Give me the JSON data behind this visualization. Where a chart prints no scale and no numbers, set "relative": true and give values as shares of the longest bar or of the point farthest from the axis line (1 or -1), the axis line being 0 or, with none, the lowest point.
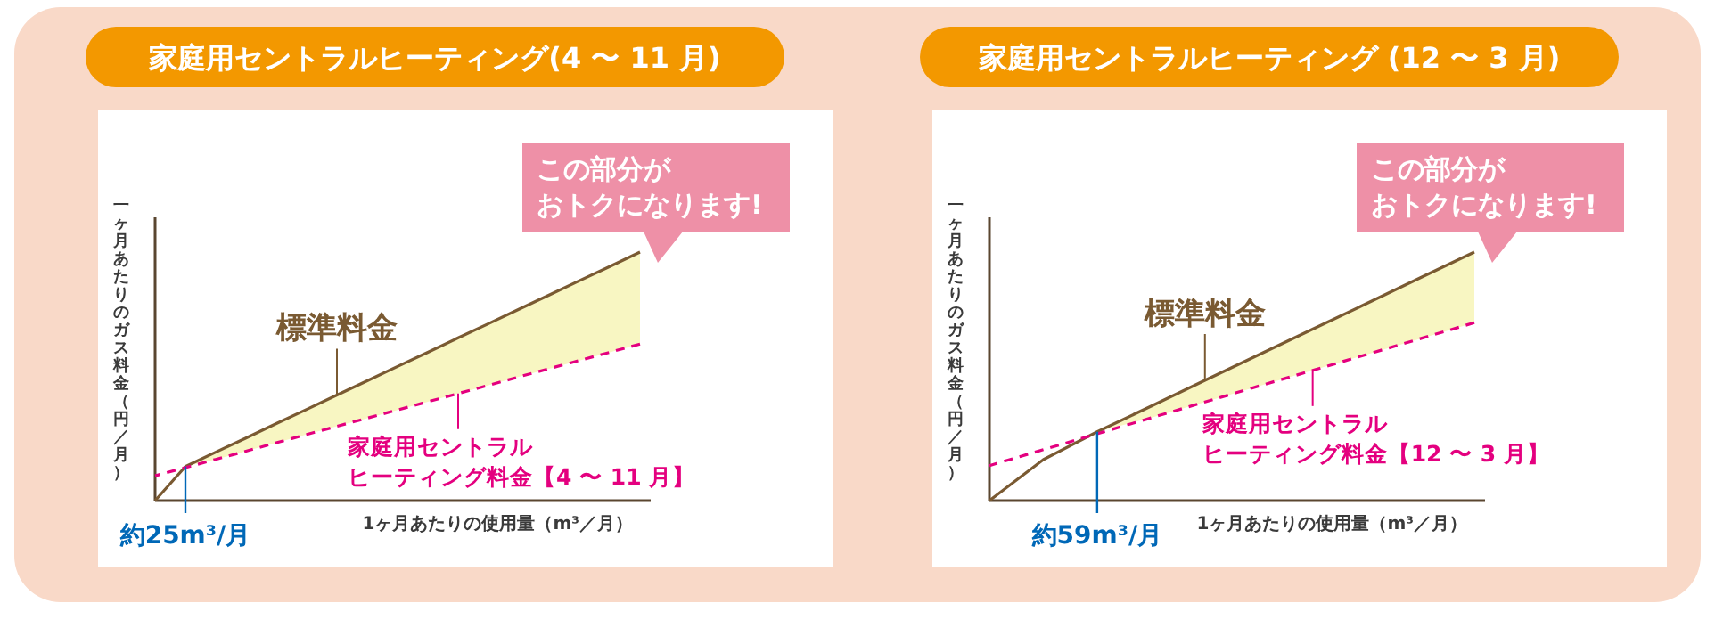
{
  "chart_data": [
    {
      "type": "line",
      "title": "家庭用セントラルヒーティング(4 〜 11 月)",
      "xlabel": "1ヶ月あたりの使用量（m³／月）",
      "ylabel": "一ヶ月あたりのガス料金（円／月）",
      "relative": true,
      "categories": [
        null,
        null,
        null,
        null,
        null,
        null,
        null,
        null,
        null,
        null,
        null,
        null,
        null,
        null,
        null,
        null,
        null
      ],
      "series": [
        {
          "name": "標準料金",
          "color": "#7a5a32",
          "values": [
            0,
            0.137,
            0.195,
            0.252,
            0.31,
            0.367,
            0.425,
            0.482,
            0.54,
            0.597,
            0.655,
            0.712,
            0.77,
            0.827,
            0.885,
            0.942,
            1
          ],
          "lower": [
            null,
            0.137,
            0.166,
            0.199,
            0.233,
            0.266,
            0.299,
            0.332,
            0.365,
            0.398,
            0.431,
            0.464,
            0.498,
            0.531,
            0.564,
            0.597,
            0.63
          ],
          "upper": [
            null,
            0.137,
            0.195,
            0.252,
            0.31,
            0.367,
            0.425,
            0.482,
            0.54,
            0.597,
            0.655,
            0.712,
            0.77,
            0.827,
            0.885,
            0.942,
            1
          ],
          "line_style": "solid"
        },
        {
          "name": "家庭用セントラルヒーティング料金【4 〜 11 月】",
          "color": "#e4007f",
          "values": [
            0.1,
            0.133,
            0.166,
            0.199,
            0.233,
            0.266,
            0.299,
            0.332,
            0.365,
            0.398,
            0.431,
            0.464,
            0.498,
            0.531,
            0.564,
            0.597,
            0.63
          ],
          "line_style": "dashed"
        }
      ],
      "annotations": [
        {
          "text": "約25m³/月",
          "y": 0.137
        },
        "この部分がおトクになります!"
      ]
    },
    {
      "type": "line",
      "title": "家庭用セントラルヒーティング (12 〜 3 月)",
      "xlabel": "1ヶ月あたりの使用量（m³／月）",
      "ylabel": "一ヶ月あたりのガス料金（円／月）",
      "relative": true,
      "categories": [
        null,
        null,
        null,
        null,
        null,
        null,
        null,
        null,
        null,
        null
      ],
      "series": [
        {
          "name": "標準料金",
          "color": "#7a5a32",
          "values": [
            0,
            0.165,
            0.277,
            0.38,
            0.484,
            0.587,
            0.69,
            0.793,
            0.897,
            1
          ],
          "lower": [
            null,
            null,
            0.277,
            0.333,
            0.397,
            0.461,
            0.524,
            0.588,
            0.652,
            0.716
          ],
          "upper": [
            null,
            null,
            0.277,
            0.38,
            0.484,
            0.587,
            0.69,
            0.793,
            0.897,
            1
          ],
          "line_style": "solid"
        },
        {
          "name": "家庭用セントラルヒーティング料金【12 〜 3 月】",
          "color": "#e4007f",
          "values": [
            0.141,
            0.205,
            0.269,
            0.333,
            0.397,
            0.461,
            0.524,
            0.588,
            0.652,
            0.716
          ],
          "line_style": "dashed"
        }
      ],
      "annotations": [
        {
          "text": "約59m³/月",
          "y": 0.277
        },
        "この部分がおトクになります!"
      ]
    }
  ]
}
